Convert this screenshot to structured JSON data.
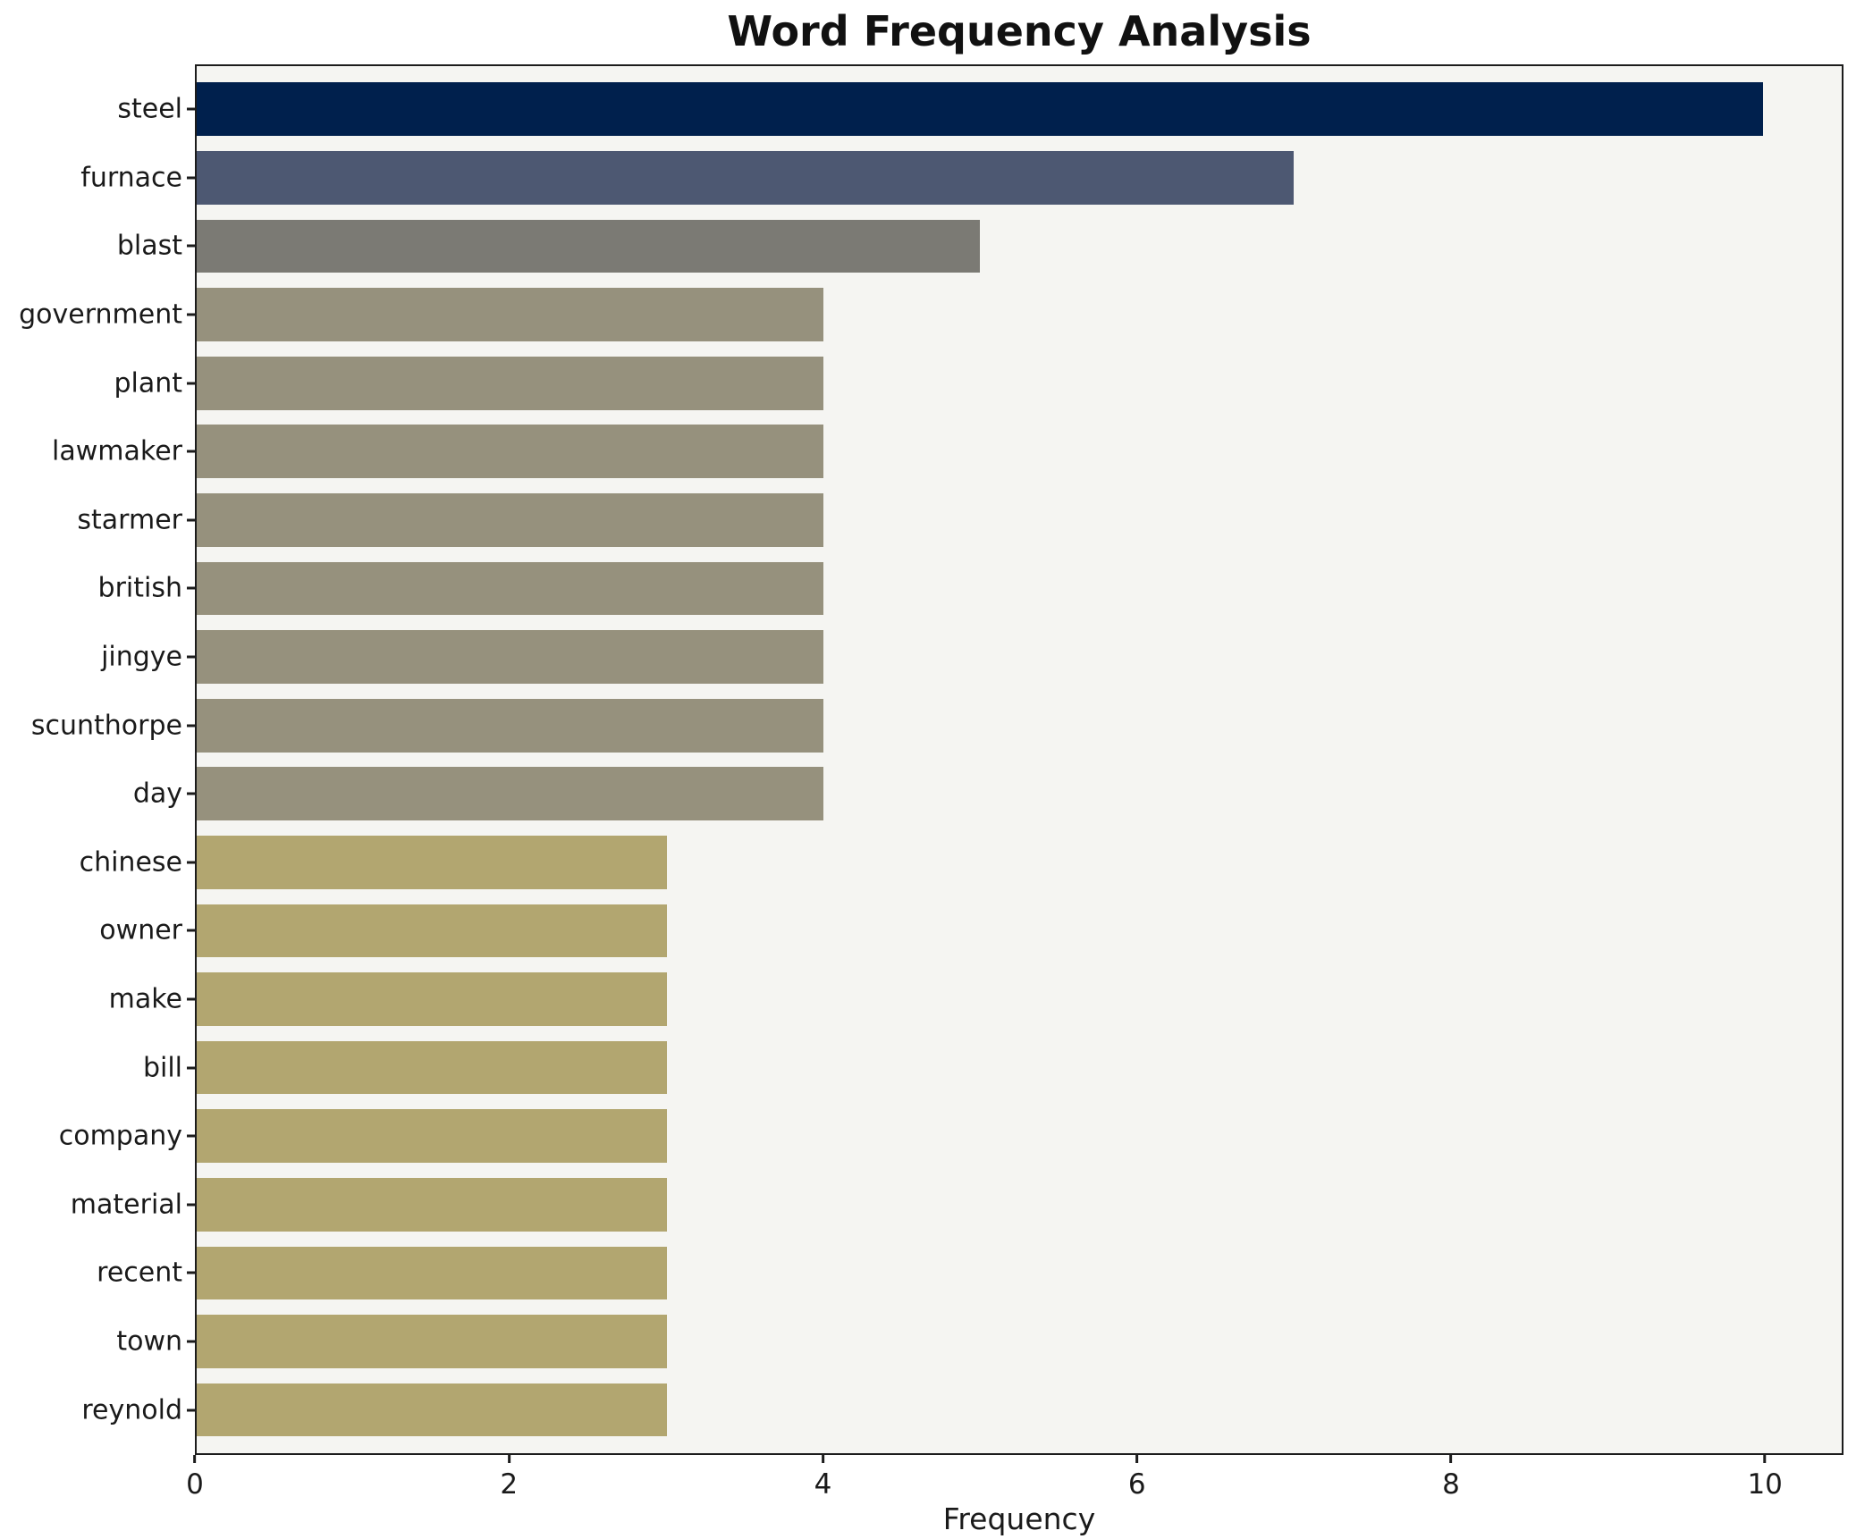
{
  "chart_data": {
    "type": "bar",
    "orientation": "horizontal",
    "title": "Word Frequency Analysis",
    "xlabel": "Frequency",
    "ylabel": "",
    "categories": [
      "steel",
      "furnace",
      "blast",
      "government",
      "plant",
      "lawmaker",
      "starmer",
      "british",
      "jingye",
      "scunthorpe",
      "day",
      "chinese",
      "owner",
      "make",
      "bill",
      "company",
      "material",
      "recent",
      "town",
      "reynold"
    ],
    "values": [
      10,
      7,
      5,
      4,
      4,
      4,
      4,
      4,
      4,
      4,
      4,
      3,
      3,
      3,
      3,
      3,
      3,
      3,
      3,
      3
    ],
    "bar_colors": [
      "#00204d",
      "#4d5872",
      "#7b7a74",
      "#96917d",
      "#96917d",
      "#96917d",
      "#96917d",
      "#96917d",
      "#96917d",
      "#96917d",
      "#96917d",
      "#b2a670",
      "#b2a670",
      "#b2a670",
      "#b2a670",
      "#b2a670",
      "#b2a670",
      "#b2a670",
      "#b2a670",
      "#b2a670"
    ],
    "xlim": [
      0,
      10.5
    ],
    "xticks": [
      0,
      2,
      4,
      6,
      8,
      10
    ],
    "grid": false,
    "legend_position": "none",
    "plot_background": "#f5f5f2",
    "figure_background": "#ffffff"
  }
}
